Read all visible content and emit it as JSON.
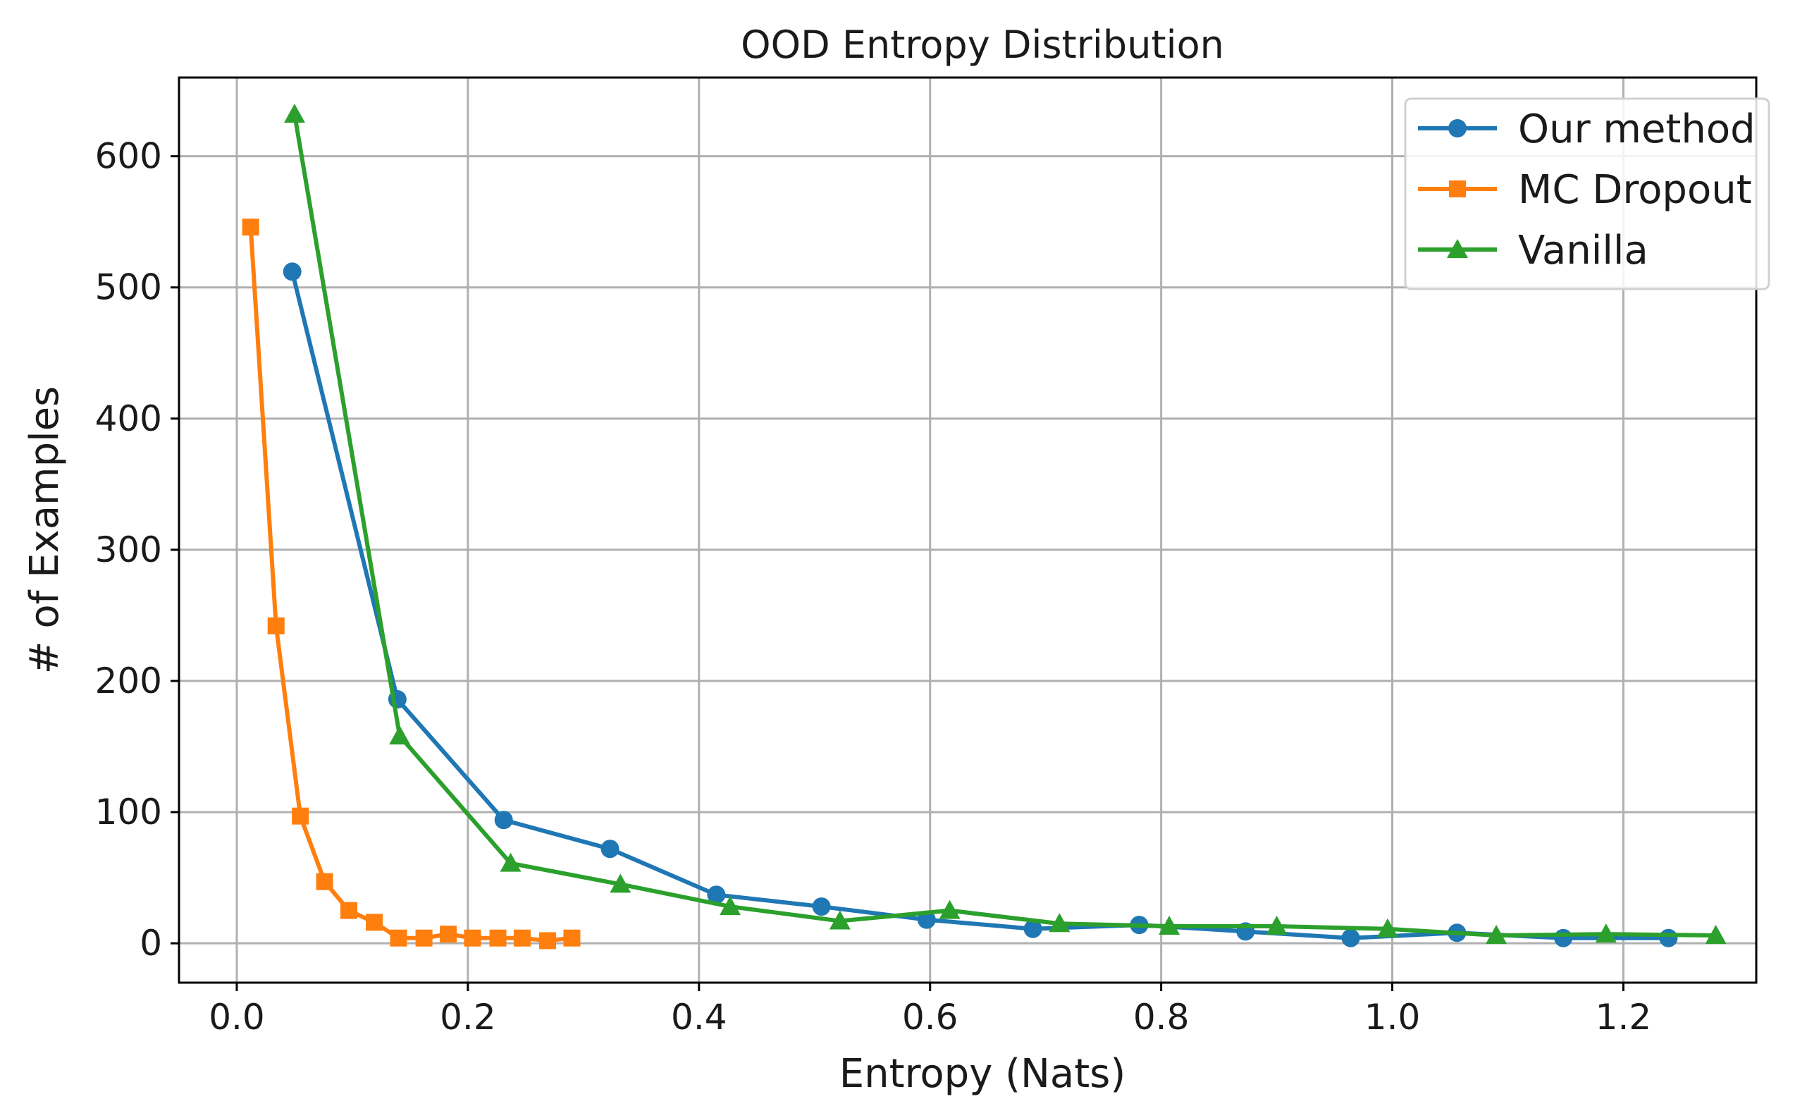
{
  "chart_data": {
    "type": "line",
    "title": "OOD Entropy Distribution",
    "xlabel": "Entropy (Nats)",
    "ylabel": "# of Examples",
    "xlim": [
      -0.05,
      1.315
    ],
    "ylim": [
      -30,
      660
    ],
    "xticks": [
      0.0,
      0.2,
      0.4,
      0.6,
      0.8,
      1.0,
      1.2
    ],
    "xtick_labels": [
      "0.0",
      "0.2",
      "0.4",
      "0.6",
      "0.8",
      "1.0",
      "1.2"
    ],
    "yticks": [
      0,
      100,
      200,
      300,
      400,
      500,
      600
    ],
    "ytick_labels": [
      "0",
      "100",
      "200",
      "300",
      "400",
      "500",
      "600"
    ],
    "grid": true,
    "legend_position": "top-right",
    "series": [
      {
        "name": "Our method",
        "color": "#1f77b4",
        "marker": "circle",
        "x": [
          0.048,
          0.139,
          0.231,
          0.323,
          0.415,
          0.506,
          0.597,
          0.689,
          0.781,
          0.873,
          0.964,
          1.056,
          1.148,
          1.239
        ],
        "y": [
          512,
          186,
          94,
          72,
          37,
          28,
          18,
          11,
          14,
          9,
          4,
          8,
          4,
          4
        ]
      },
      {
        "name": "MC Dropout",
        "color": "#ff7f0e",
        "marker": "square",
        "x": [
          0.012,
          0.034,
          0.055,
          0.076,
          0.097,
          0.119,
          0.14,
          0.162,
          0.183,
          0.204,
          0.226,
          0.247,
          0.269,
          0.29
        ],
        "y": [
          546,
          242,
          97,
          47,
          25,
          16,
          4,
          4,
          7,
          4,
          4,
          4,
          2,
          4
        ]
      },
      {
        "name": "Vanilla",
        "color": "#2ca02c",
        "marker": "triangle",
        "x": [
          0.05,
          0.141,
          0.237,
          0.332,
          0.427,
          0.522,
          0.617,
          0.712,
          0.807,
          0.9,
          0.996,
          1.09,
          1.185,
          1.28
        ],
        "y": [
          632,
          158,
          61,
          45,
          28,
          17,
          25,
          15,
          13,
          13,
          11,
          6,
          7,
          6
        ]
      }
    ]
  }
}
